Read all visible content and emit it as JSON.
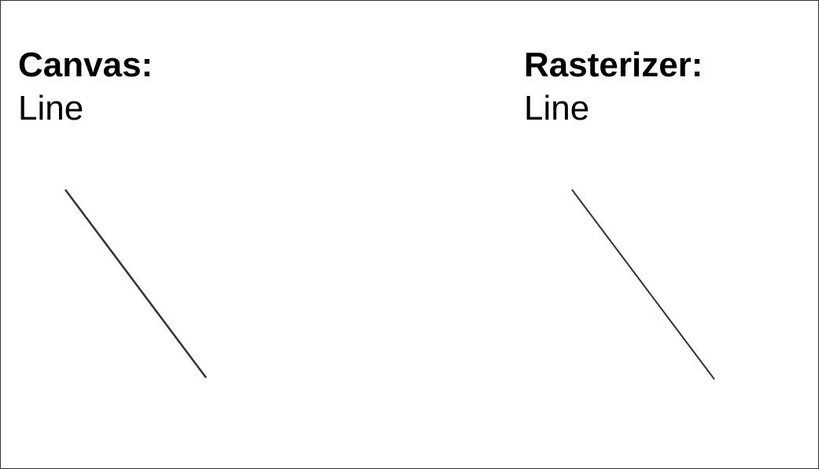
{
  "panels": {
    "canvas": {
      "title": "Canvas:",
      "subtitle": "Line"
    },
    "rasterizer": {
      "title": "Rasterizer:",
      "subtitle": "Line"
    }
  },
  "colors": {
    "line": "#333333",
    "border": "#333333",
    "background": "#ffffff"
  }
}
